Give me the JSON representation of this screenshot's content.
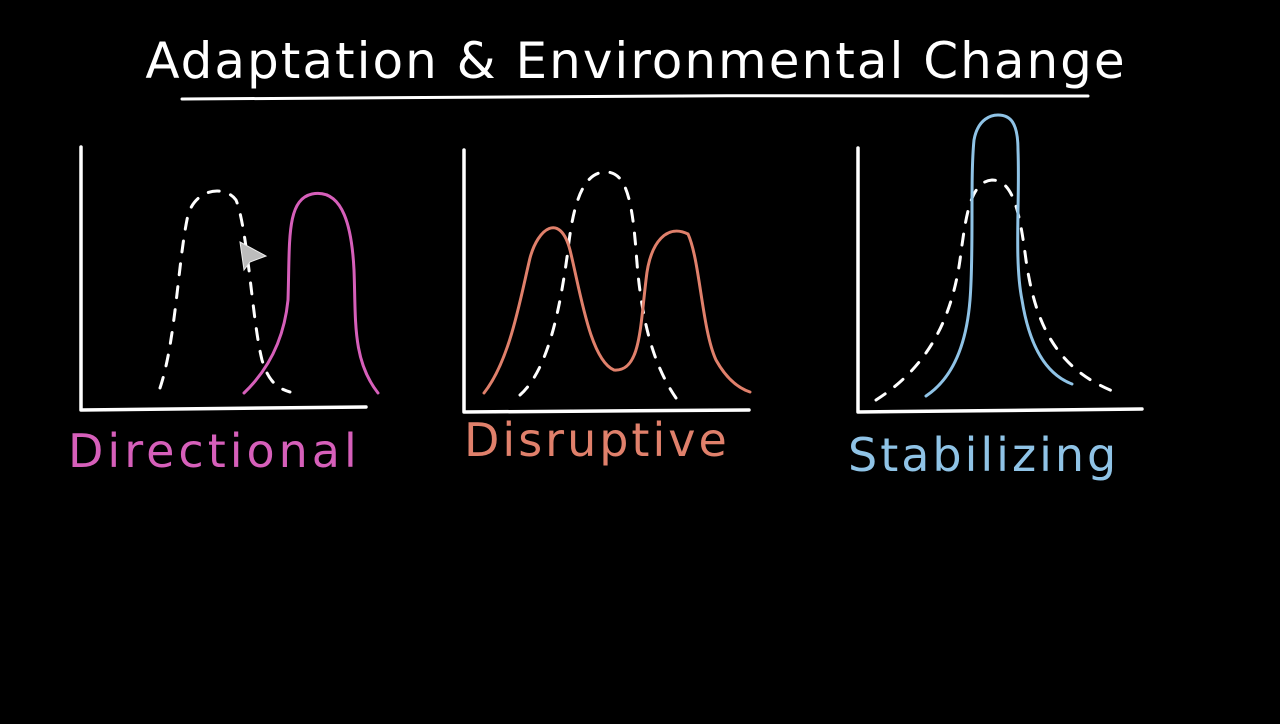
{
  "title": {
    "text": "Adaptation & Environmental Change",
    "color": "#ffffff"
  },
  "panels": [
    {
      "label": "Directional",
      "color": "#d65fba",
      "shape": "shift-right"
    },
    {
      "label": "Disruptive",
      "color": "#e0806b",
      "shape": "bimodal"
    },
    {
      "label": "Stabilizing",
      "color": "#8fc3e6",
      "shape": "narrow-peak"
    }
  ],
  "original_curve_color": "#ffffff",
  "cursor_icon": "pointer-arrow-icon"
}
